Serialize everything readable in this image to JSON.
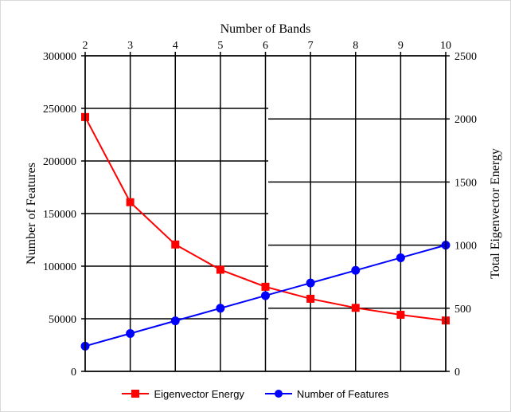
{
  "chart_data": {
    "type": "line",
    "title": "Number  of Bands",
    "x": [
      2,
      3,
      4,
      5,
      6,
      7,
      8,
      9,
      10
    ],
    "xlim": [
      2,
      10
    ],
    "x_ticks": [
      "2",
      "3",
      "4",
      "5",
      "6",
      "7",
      "8",
      "9",
      "10"
    ],
    "x_axis_position": "top",
    "y_left": {
      "label": "Number of Features",
      "lim": [
        0,
        300000
      ],
      "ticks": [
        "0",
        "50000",
        "100000",
        "150000",
        "200000",
        "250000",
        "300000"
      ]
    },
    "y_right": {
      "label": "Total Eigenvector  Energy",
      "lim": [
        0,
        2500
      ],
      "ticks": [
        "0",
        "500",
        "1000",
        "1500",
        "2000",
        "2500"
      ]
    },
    "series": [
      {
        "name": "Eigenvector Energy",
        "axis": "right",
        "color": "#ff0000",
        "marker": "square",
        "values": [
          2015,
          1340,
          1005,
          805,
          670,
          575,
          503,
          448,
          403
        ]
      },
      {
        "name": "Number of Features",
        "axis": "left",
        "color": "#0000ff",
        "marker": "circle",
        "values": [
          24000,
          36000,
          48000,
          60000,
          72000,
          84000,
          96000,
          108000,
          120000
        ]
      }
    ],
    "grid": true,
    "legend_position": "bottom"
  }
}
